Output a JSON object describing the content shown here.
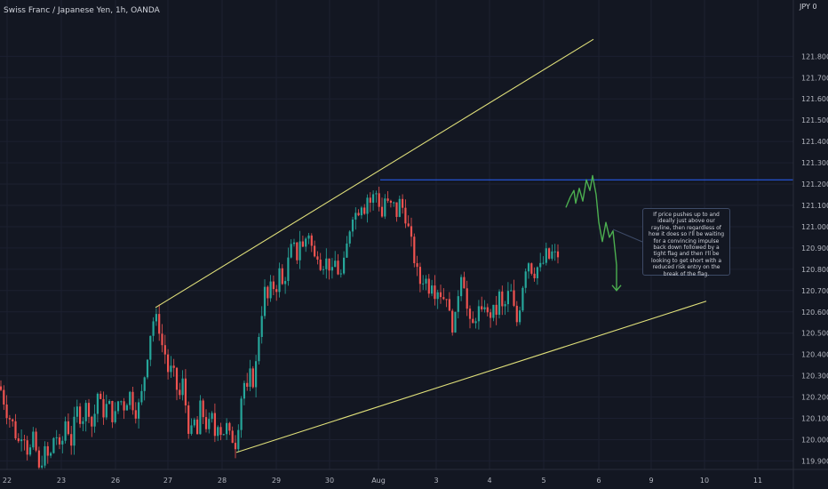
{
  "header": {
    "symbol": "Swiss Franc / Japanese Yen, 1h, OANDA",
    "currency_badge": "JPY 0"
  },
  "colors": {
    "background": "#131722",
    "grid": "#1c2030",
    "bullish": "#26a69a",
    "bearish": "#ef5350",
    "trendline": "#e0e07a",
    "resistance": "#2962ff",
    "projection": "#4caf50",
    "axis_text": "#b2b5be"
  },
  "note": {
    "text": "If price pushes up to and ideally just above our rayline, then regardless of how it does so I'll be waiting for a convincing impulse back down followed by a tight flag and then I'll be looking to get short with a reduced risk entry on the break of the flag."
  },
  "chart_data": {
    "type": "candlestick",
    "instrument": "CHFJPY",
    "timeframe": "1h",
    "x_ticks": [
      "22",
      "23",
      "26",
      "27",
      "28",
      "29",
      "30",
      "Aug",
      "3",
      "4",
      "5",
      "6",
      "9",
      "10",
      "11"
    ],
    "y_ticks": [
      "119.900",
      "120.000",
      "120.100",
      "120.200",
      "120.300",
      "120.400",
      "120.500",
      "120.600",
      "120.700",
      "120.800",
      "120.900",
      "121.000",
      "121.100",
      "121.200",
      "121.300",
      "121.400",
      "121.500",
      "121.600",
      "121.700",
      "121.800"
    ],
    "ylim": [
      119.86,
      121.97
    ],
    "close_path": [
      [
        0,
        120.25
      ],
      [
        8,
        120.12
      ],
      [
        14,
        120.08
      ],
      [
        20,
        119.98
      ],
      [
        26,
        120.05
      ],
      [
        32,
        119.92
      ],
      [
        38,
        120.02
      ],
      [
        44,
        119.85
      ],
      [
        50,
        119.95
      ],
      [
        56,
        119.9
      ],
      [
        62,
        120.05
      ],
      [
        68,
        119.93
      ],
      [
        74,
        120.1
      ],
      [
        80,
        119.98
      ],
      [
        86,
        120.15
      ],
      [
        92,
        120.08
      ],
      [
        98,
        120.18
      ],
      [
        104,
        120.05
      ],
      [
        110,
        120.22
      ],
      [
        116,
        120.12
      ],
      [
        122,
        120.18
      ],
      [
        128,
        120.08
      ],
      [
        134,
        120.2
      ],
      [
        140,
        120.15
      ],
      [
        146,
        120.22
      ],
      [
        152,
        120.12
      ],
      [
        158,
        120.18
      ],
      [
        162,
        120.28
      ],
      [
        166,
        120.4
      ],
      [
        170,
        120.52
      ],
      [
        174,
        120.58
      ],
      [
        178,
        120.55
      ],
      [
        182,
        120.45
      ],
      [
        186,
        120.4
      ],
      [
        190,
        120.3
      ],
      [
        194,
        120.35
      ],
      [
        198,
        120.25
      ],
      [
        202,
        120.2
      ],
      [
        206,
        120.28
      ],
      [
        210,
        120.12
      ],
      [
        214,
        120.0
      ],
      [
        218,
        120.1
      ],
      [
        222,
        120.02
      ],
      [
        226,
        120.18
      ],
      [
        230,
        120.08
      ],
      [
        234,
        120.05
      ],
      [
        238,
        120.12
      ],
      [
        242,
        120.02
      ],
      [
        246,
        120.1
      ],
      [
        250,
        120.0
      ],
      [
        254,
        120.08
      ],
      [
        258,
        120.02
      ],
      [
        262,
        120.0
      ],
      [
        266,
        119.97
      ],
      [
        270,
        120.15
      ],
      [
        274,
        120.28
      ],
      [
        278,
        120.22
      ],
      [
        282,
        120.32
      ],
      [
        286,
        120.25
      ],
      [
        290,
        120.45
      ],
      [
        294,
        120.58
      ],
      [
        298,
        120.7
      ],
      [
        302,
        120.65
      ],
      [
        306,
        120.75
      ],
      [
        310,
        120.68
      ],
      [
        314,
        120.8
      ],
      [
        318,
        120.72
      ],
      [
        322,
        120.78
      ],
      [
        326,
        120.88
      ],
      [
        330,
        120.92
      ],
      [
        334,
        120.85
      ],
      [
        338,
        120.95
      ],
      [
        342,
        120.88
      ],
      [
        346,
        121.0
      ],
      [
        350,
        120.92
      ],
      [
        354,
        120.85
      ],
      [
        358,
        120.88
      ],
      [
        362,
        120.8
      ],
      [
        366,
        120.85
      ],
      [
        370,
        120.82
      ],
      [
        374,
        120.78
      ],
      [
        378,
        120.85
      ],
      [
        382,
        120.75
      ],
      [
        386,
        120.8
      ],
      [
        390,
        120.9
      ],
      [
        394,
        121.0
      ],
      [
        398,
        121.08
      ],
      [
        402,
        121.05
      ],
      [
        406,
        121.12
      ],
      [
        410,
        121.08
      ],
      [
        414,
        121.15
      ],
      [
        418,
        121.1
      ],
      [
        422,
        121.18
      ],
      [
        426,
        121.12
      ],
      [
        430,
        121.05
      ],
      [
        434,
        121.15
      ],
      [
        438,
        121.08
      ],
      [
        442,
        121.12
      ],
      [
        446,
        121.05
      ],
      [
        450,
        121.12
      ],
      [
        454,
        121.08
      ],
      [
        458,
        121.02
      ],
      [
        462,
        120.95
      ],
      [
        466,
        120.85
      ],
      [
        470,
        120.78
      ],
      [
        474,
        120.72
      ],
      [
        478,
        120.78
      ],
      [
        482,
        120.7
      ],
      [
        486,
        120.75
      ],
      [
        490,
        120.68
      ],
      [
        494,
        120.72
      ],
      [
        498,
        120.65
      ],
      [
        502,
        120.7
      ],
      [
        506,
        120.58
      ],
      [
        510,
        120.52
      ],
      [
        514,
        120.6
      ],
      [
        518,
        120.8
      ],
      [
        522,
        120.75
      ],
      [
        526,
        120.6
      ],
      [
        530,
        120.52
      ],
      [
        534,
        120.55
      ],
      [
        538,
        120.62
      ],
      [
        542,
        120.58
      ],
      [
        546,
        120.65
      ],
      [
        550,
        120.55
      ],
      [
        554,
        120.62
      ],
      [
        558,
        120.58
      ],
      [
        562,
        120.68
      ],
      [
        566,
        120.6
      ],
      [
        570,
        120.65
      ],
      [
        574,
        120.72
      ],
      [
        578,
        120.62
      ],
      [
        582,
        120.55
      ],
      [
        586,
        120.65
      ],
      [
        590,
        120.78
      ],
      [
        594,
        120.85
      ],
      [
        598,
        120.8
      ],
      [
        602,
        120.78
      ],
      [
        606,
        120.82
      ],
      [
        610,
        120.8
      ],
      [
        614,
        120.88
      ],
      [
        618,
        120.85
      ],
      [
        622,
        120.88
      ],
      [
        626,
        120.86
      ],
      [
        630,
        120.87
      ]
    ],
    "drawings": {
      "upper_trendline": [
        [
          175,
          120.62
        ],
        [
          668,
          121.88
        ]
      ],
      "lower_trendline": [
        [
          266,
          119.94
        ],
        [
          795,
          120.65
        ]
      ],
      "resistance_ray": [
        [
          428,
          121.22
        ],
        [
          932,
          121.22
        ]
      ],
      "projection_path": [
        [
          637,
          121.09
        ],
        [
          642,
          121.14
        ],
        [
          646,
          121.17
        ],
        [
          648,
          121.11
        ],
        [
          652,
          121.18
        ],
        [
          656,
          121.12
        ],
        [
          660,
          121.22
        ],
        [
          664,
          121.17
        ],
        [
          667,
          121.24
        ],
        [
          671,
          121.15
        ],
        [
          674,
          121.02
        ],
        [
          678,
          120.93
        ],
        [
          682,
          121.02
        ],
        [
          686,
          120.95
        ],
        [
          690,
          120.98
        ],
        [
          694,
          120.82
        ],
        [
          694,
          120.7
        ]
      ]
    }
  }
}
